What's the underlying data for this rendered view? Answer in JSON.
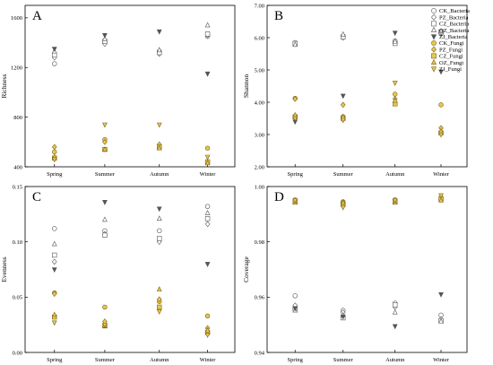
{
  "figure": {
    "legend": [
      {
        "label": "CK_Bacteria",
        "marker": "circle",
        "fill": "#ffffff",
        "stroke": "#555555"
      },
      {
        "label": "PZ_Bacteria",
        "marker": "diamond",
        "fill": "#ffffff",
        "stroke": "#555555"
      },
      {
        "label": "CZ_Bacteria",
        "marker": "square",
        "fill": "#ffffff",
        "stroke": "#555555"
      },
      {
        "label": "OZ_Bacteria",
        "marker": "triangle-up",
        "fill": "#ffffff",
        "stroke": "#555555"
      },
      {
        "label": "ZJ_Bacteria",
        "marker": "triangle-down",
        "fill": "#555555",
        "stroke": "#555555"
      },
      {
        "label": "CK_Fungi",
        "marker": "circle",
        "fill": "#e8c84a",
        "stroke": "#7a6420"
      },
      {
        "label": "PZ_Fungi",
        "marker": "diamond",
        "fill": "#e8c84a",
        "stroke": "#7a6420"
      },
      {
        "label": "CZ_Fungi",
        "marker": "square",
        "fill": "#e8c84a",
        "stroke": "#7a6420"
      },
      {
        "label": "OZ_Fungi",
        "marker": "triangle-up",
        "fill": "#e8c84a",
        "stroke": "#7a6420"
      },
      {
        "label": "ZJ_Fungi",
        "marker": "triangle-down",
        "fill": "#e8c84a",
        "stroke": "#7a6420"
      }
    ]
  },
  "chart_data": [
    {
      "type": "scatter",
      "panel_label": "A",
      "ylabel": "Richness",
      "xlabel": "",
      "categories": [
        "Spring",
        "Summer",
        "Autumn",
        "Winter"
      ],
      "ylim": [
        400,
        1700
      ],
      "yticks": [
        400,
        800,
        1200,
        1600
      ],
      "ytick_labels": [
        "400",
        "800",
        "1200",
        "1600"
      ],
      "series": [
        {
          "name": "CK_Bacteria",
          "values": [
            1230,
            1400,
            1330,
            1450
          ]
        },
        {
          "name": "PZ_Bacteria",
          "values": [
            1280,
            1390,
            1310,
            1460
          ]
        },
        {
          "name": "CZ_Bacteria",
          "values": [
            1300,
            1410,
            1320,
            1470
          ]
        },
        {
          "name": "OZ_Bacteria",
          "values": [
            1330,
            1430,
            1340,
            1540
          ]
        },
        {
          "name": "ZJ_Bacteria",
          "values": [
            1350,
            1460,
            1490,
            1150
          ]
        },
        {
          "name": "CK_Fungi",
          "values": [
            520,
            620,
            570,
            550
          ]
        },
        {
          "name": "PZ_Fungi",
          "values": [
            560,
            600,
            580,
            440
          ]
        },
        {
          "name": "CZ_Fungi",
          "values": [
            470,
            540,
            560,
            440
          ]
        },
        {
          "name": "OZ_Fungi",
          "values": [
            480,
            540,
            550,
            430
          ]
        },
        {
          "name": "ZJ_Fungi",
          "values": [
            460,
            740,
            740,
            480
          ]
        }
      ]
    },
    {
      "type": "scatter",
      "panel_label": "B",
      "ylabel": "Shannon",
      "xlabel": "",
      "categories": [
        "Spring",
        "Summer",
        "Autumn",
        "Winter"
      ],
      "ylim": [
        2.0,
        7.0
      ],
      "yticks": [
        2.0,
        3.0,
        4.0,
        5.0,
        6.0,
        7.0
      ],
      "ytick_labels": [
        "2.00",
        "3.00",
        "4.00",
        "5.00",
        "6.00",
        "7.00"
      ],
      "series": [
        {
          "name": "CK_Bacteria",
          "values": [
            5.85,
            6.05,
            5.9,
            6.12
          ]
        },
        {
          "name": "PZ_Bacteria",
          "values": [
            5.8,
            6.0,
            5.85,
            6.15
          ]
        },
        {
          "name": "CZ_Bacteria",
          "values": [
            5.82,
            6.02,
            5.82,
            6.18
          ]
        },
        {
          "name": "OZ_Bacteria",
          "values": [
            5.78,
            6.1,
            5.88,
            6.2
          ]
        },
        {
          "name": "ZJ_Bacteria",
          "values": [
            3.4,
            4.2,
            6.15,
            4.95
          ]
        },
        {
          "name": "CK_Fungi",
          "values": [
            4.12,
            3.55,
            4.25,
            3.92
          ]
        },
        {
          "name": "PZ_Fungi",
          "values": [
            4.1,
            3.92,
            4.1,
            3.2
          ]
        },
        {
          "name": "CZ_Fungi",
          "values": [
            3.55,
            3.5,
            3.95,
            3.05
          ]
        },
        {
          "name": "OZ_Fungi",
          "values": [
            3.6,
            3.55,
            4.05,
            3.1
          ]
        },
        {
          "name": "ZJ_Fungi",
          "values": [
            3.5,
            3.45,
            4.6,
            3.0
          ]
        }
      ]
    },
    {
      "type": "scatter",
      "panel_label": "C",
      "ylabel": "Evenness",
      "xlabel": "",
      "categories": [
        "Spring",
        "Summer",
        "Autumn",
        "Winter"
      ],
      "ylim": [
        0.0,
        0.15
      ],
      "yticks": [
        0.0,
        0.05,
        0.1,
        0.15
      ],
      "ytick_labels": [
        "0.00",
        "0.05",
        "0.10",
        "0.15"
      ],
      "series": [
        {
          "name": "CK_Bacteria",
          "values": [
            0.112,
            0.11,
            0.11,
            0.132
          ]
        },
        {
          "name": "PZ_Bacteria",
          "values": [
            0.082,
            0.107,
            0.1,
            0.116
          ]
        },
        {
          "name": "CZ_Bacteria",
          "values": [
            0.088,
            0.106,
            0.103,
            0.121
          ]
        },
        {
          "name": "OZ_Bacteria",
          "values": [
            0.098,
            0.12,
            0.121,
            0.126
          ]
        },
        {
          "name": "ZJ_Bacteria",
          "values": [
            0.075,
            0.136,
            0.13,
            0.08
          ]
        },
        {
          "name": "CK_Fungi",
          "values": [
            0.054,
            0.041,
            0.046,
            0.033
          ]
        },
        {
          "name": "PZ_Fungi",
          "values": [
            0.053,
            0.028,
            0.048,
            0.022
          ]
        },
        {
          "name": "CZ_Fungi",
          "values": [
            0.032,
            0.024,
            0.041,
            0.018
          ]
        },
        {
          "name": "OZ_Fungi",
          "values": [
            0.034,
            0.024,
            0.057,
            0.02
          ]
        },
        {
          "name": "ZJ_Fungi",
          "values": [
            0.027,
            0.025,
            0.037,
            0.016
          ]
        }
      ]
    },
    {
      "type": "scatter",
      "panel_label": "D",
      "ylabel": "Coverage",
      "xlabel": "",
      "categories": [
        "Spring",
        "Summer",
        "Autumn",
        "Winter"
      ],
      "ylim": [
        0.94,
        1.0
      ],
      "yticks": [
        0.94,
        0.96,
        0.98,
        1.0
      ],
      "ytick_labels": [
        "0.94",
        "0.96",
        "0.98",
        "1.00"
      ],
      "series": [
        {
          "name": "CK_Bacteria",
          "values": [
            0.9605,
            0.9552,
            0.9578,
            0.9535
          ]
        },
        {
          "name": "PZ_Bacteria",
          "values": [
            0.957,
            0.9545,
            0.9565,
            0.952
          ]
        },
        {
          "name": "CZ_Bacteria",
          "values": [
            0.9558,
            0.9525,
            0.9572,
            0.9515
          ]
        },
        {
          "name": "OZ_Bacteria",
          "values": [
            0.9552,
            0.9535,
            0.9545,
            0.9512
          ]
        },
        {
          "name": "ZJ_Bacteria",
          "values": [
            0.956,
            0.953,
            0.9495,
            0.961
          ]
        },
        {
          "name": "CK_Fungi",
          "values": [
            0.9952,
            0.9945,
            0.9952,
            0.9958
          ]
        },
        {
          "name": "PZ_Fungi",
          "values": [
            0.9948,
            0.9942,
            0.9948,
            0.9962
          ]
        },
        {
          "name": "CZ_Fungi",
          "values": [
            0.9945,
            0.9935,
            0.9945,
            0.9955
          ]
        },
        {
          "name": "OZ_Fungi",
          "values": [
            0.9942,
            0.9942,
            0.9942,
            0.995
          ]
        },
        {
          "name": "ZJ_Fungi",
          "values": [
            0.995,
            0.9925,
            0.995,
            0.9968
          ]
        }
      ]
    }
  ]
}
